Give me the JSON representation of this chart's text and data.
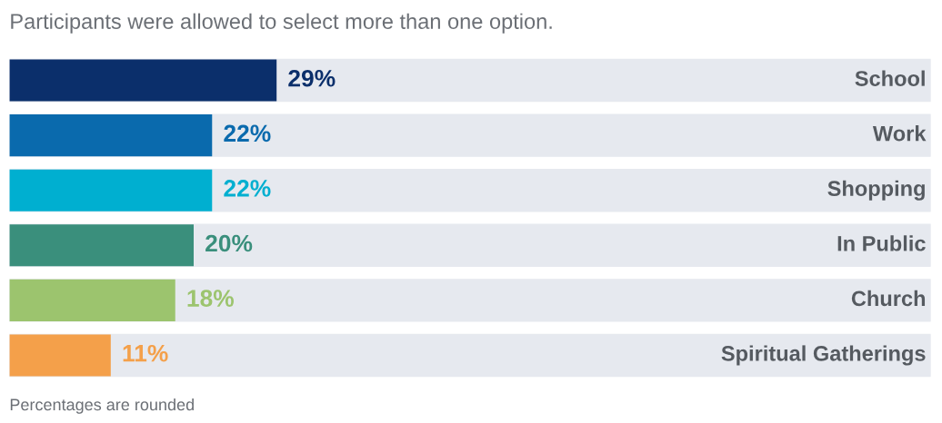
{
  "chart_data": {
    "type": "bar",
    "orientation": "horizontal",
    "title": "Participants were allowed to select more than one option.",
    "categories": [
      "School",
      "Work",
      "Shopping",
      "In Public",
      "Church",
      "Spiritual Gatherings"
    ],
    "values": [
      29,
      22,
      22,
      20,
      18,
      11
    ],
    "colors": [
      "#0b2f6b",
      "#0a6aad",
      "#00afd0",
      "#3a8f7c",
      "#9cc46e",
      "#f4a04a"
    ],
    "value_labels": [
      "29%",
      "22%",
      "22%",
      "20%",
      "18%",
      "11%"
    ],
    "xlim": [
      0,
      100
    ],
    "tick_labels": false,
    "grid": false,
    "legend": false,
    "annotations": [
      "Percentages are rounded"
    ]
  }
}
